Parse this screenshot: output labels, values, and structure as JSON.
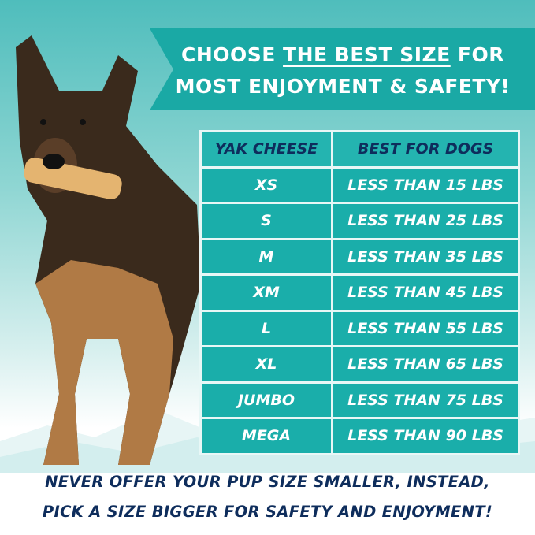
{
  "banner": {
    "line1_pre": "CHOOSE ",
    "line1_underlined": "THE BEST SIZE",
    "line1_post": " FOR",
    "line2": "MOST ENJOYMENT & SAFETY!"
  },
  "table": {
    "headers": [
      "YAK CHEESE",
      "BEST FOR DOGS"
    ],
    "rows": [
      [
        "XS",
        "LESS THAN 15 LBS"
      ],
      [
        "S",
        "LESS THAN 25 LBS"
      ],
      [
        "M",
        "LESS THAN 35 LBS"
      ],
      [
        "XM",
        "LESS THAN 45 LBS"
      ],
      [
        "L",
        "LESS THAN 55 LBS"
      ],
      [
        "XL",
        "LESS THAN 65 LBS"
      ],
      [
        "JUMBO",
        "LESS THAN 75 LBS"
      ],
      [
        "MEGA",
        "LESS THAN 90 LBS"
      ]
    ]
  },
  "footer": {
    "line1": "NEVER OFFER YOUR PUP SIZE SMALLER, INSTEAD,",
    "line2": "PICK A SIZE BIGGER FOR SAFETY AND ENJOYMENT!"
  },
  "colors": {
    "teal": "#1aa9a5",
    "navy": "#0e2d5c",
    "white": "#ffffff"
  },
  "image": {
    "subject": "german-shepherd-with-yak-cheese-chew"
  }
}
